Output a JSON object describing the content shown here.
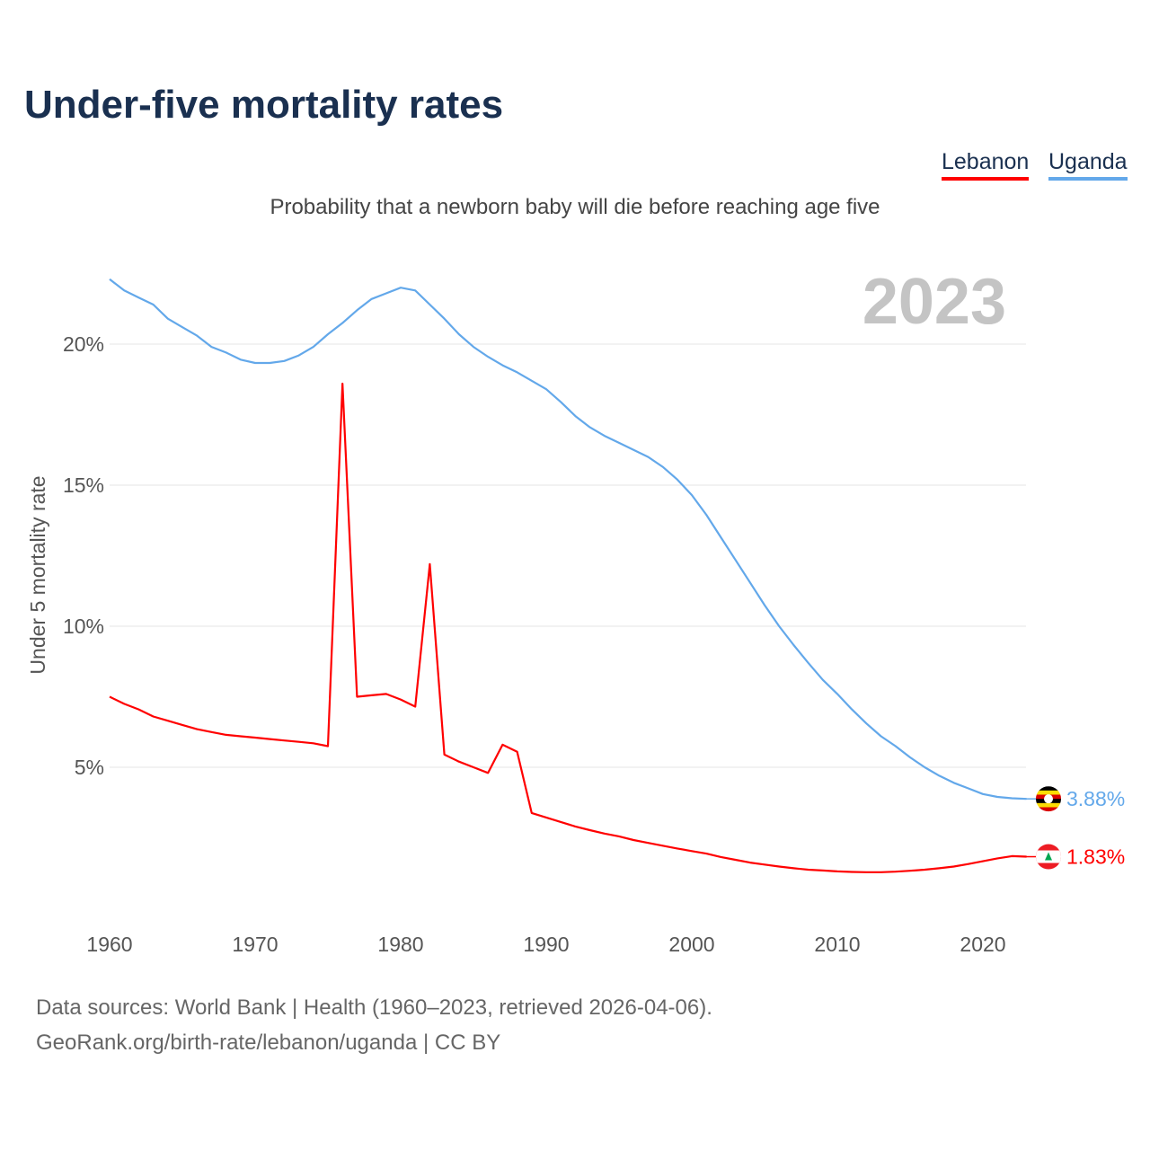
{
  "chart_data": {
    "type": "line",
    "title": "Under-five mortality rates",
    "subtitle": "Probability that a newborn baby will die before reaching age five",
    "ylabel": "Under 5 mortality rate",
    "xlabel": "",
    "year_label": "2023",
    "xlim": [
      1960,
      2023
    ],
    "ylim": [
      0,
      22.5
    ],
    "x_ticks": [
      1960,
      1970,
      1980,
      1990,
      2000,
      2010,
      2020
    ],
    "y_ticks": [
      {
        "v": 5,
        "label": "5%"
      },
      {
        "v": 10,
        "label": "10%"
      },
      {
        "v": 15,
        "label": "15%"
      },
      {
        "v": 20,
        "label": "20%"
      }
    ],
    "grid": true,
    "legend_position": "top-right",
    "x": [
      1960,
      1961,
      1962,
      1963,
      1964,
      1965,
      1966,
      1967,
      1968,
      1969,
      1970,
      1971,
      1972,
      1973,
      1974,
      1975,
      1976,
      1977,
      1978,
      1979,
      1980,
      1981,
      1982,
      1983,
      1984,
      1985,
      1986,
      1987,
      1988,
      1989,
      1990,
      1991,
      1992,
      1993,
      1994,
      1995,
      1996,
      1997,
      1998,
      1999,
      2000,
      2001,
      2002,
      2003,
      2004,
      2005,
      2006,
      2007,
      2008,
      2009,
      2010,
      2011,
      2012,
      2013,
      2014,
      2015,
      2016,
      2017,
      2018,
      2019,
      2020,
      2021,
      2022,
      2023
    ],
    "series": [
      {
        "name": "Lebanon",
        "color": "#ff0000",
        "end_label": "1.83%",
        "values": [
          7.5,
          7.25,
          7.05,
          6.8,
          6.65,
          6.5,
          6.35,
          6.25,
          6.15,
          6.1,
          6.05,
          6.0,
          5.95,
          5.9,
          5.85,
          5.75,
          18.6,
          7.5,
          7.55,
          7.6,
          7.4,
          7.15,
          12.2,
          5.45,
          5.2,
          5.0,
          4.8,
          5.8,
          5.55,
          3.38,
          3.22,
          3.06,
          2.9,
          2.77,
          2.65,
          2.55,
          2.42,
          2.32,
          2.22,
          2.12,
          2.03,
          1.94,
          1.82,
          1.72,
          1.62,
          1.55,
          1.48,
          1.42,
          1.37,
          1.34,
          1.31,
          1.29,
          1.28,
          1.28,
          1.3,
          1.33,
          1.37,
          1.42,
          1.48,
          1.57,
          1.67,
          1.77,
          1.85,
          1.83
        ]
      },
      {
        "name": "Uganda",
        "color": "#63a8ea",
        "end_label": "3.88%",
        "values": [
          22.3,
          21.9,
          21.65,
          21.4,
          20.9,
          20.6,
          20.3,
          19.9,
          19.7,
          19.45,
          19.33,
          19.33,
          19.4,
          19.6,
          19.9,
          20.35,
          20.75,
          21.2,
          21.6,
          21.8,
          22.0,
          21.9,
          21.4,
          20.9,
          20.35,
          19.9,
          19.55,
          19.25,
          19.0,
          18.7,
          18.4,
          17.95,
          17.45,
          17.05,
          16.75,
          16.5,
          16.25,
          16.0,
          15.65,
          15.2,
          14.65,
          13.95,
          13.15,
          12.35,
          11.55,
          10.75,
          10.0,
          9.33,
          8.7,
          8.1,
          7.6,
          7.05,
          6.55,
          6.1,
          5.75,
          5.35,
          5.0,
          4.7,
          4.45,
          4.25,
          4.05,
          3.95,
          3.9,
          3.88
        ]
      }
    ]
  },
  "footer": {
    "line1": "Data sources: World Bank | Health (1960–2023, retrieved 2026-04-06).",
    "line2": "GeoRank.org/birth-rate/lebanon/uganda | CC BY"
  }
}
